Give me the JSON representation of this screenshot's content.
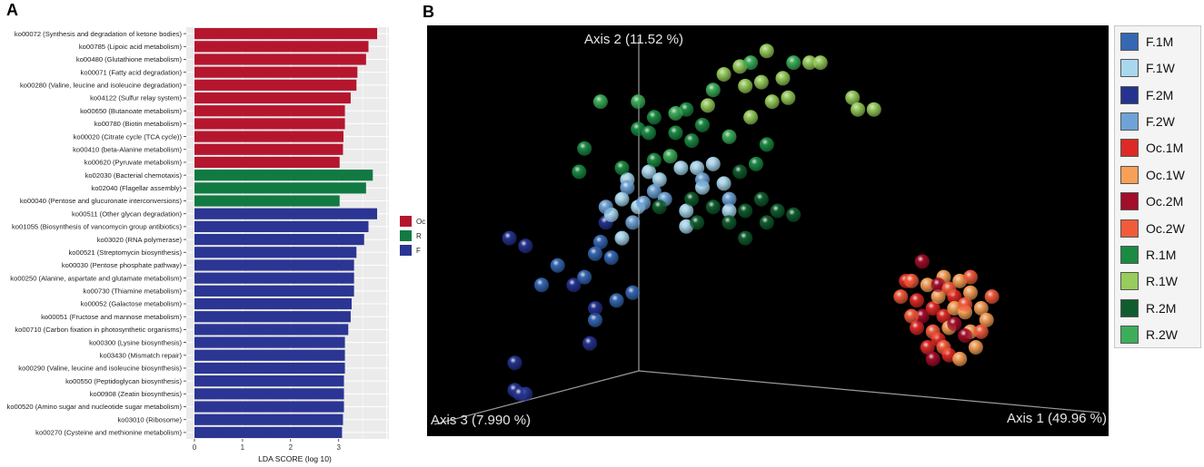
{
  "panel_a_label": "A",
  "panel_b_label": "B",
  "chart_data": [
    {
      "type": "bar",
      "orientation": "horizontal",
      "xlabel": "LDA SCORE (log 10)",
      "xlim": [
        0,
        4
      ],
      "xticks": [
        "0",
        "1",
        "2",
        "3"
      ],
      "legend": {
        "placement": "right",
        "items": [
          {
            "label": "Oc",
            "color": "#b5162e"
          },
          {
            "label": "R",
            "color": "#117a43"
          },
          {
            "label": "F",
            "color": "#2b3593"
          }
        ]
      },
      "grid": true,
      "bars": [
        {
          "label": "ko00072 (Synthesis and degradation of ketone bodies)",
          "value": 3.8,
          "group": "Oc"
        },
        {
          "label": "ko00785 (Lipoic acid metabolism)",
          "value": 3.62,
          "group": "Oc"
        },
        {
          "label": "ko00480 (Glutathione metabolism)",
          "value": 3.57,
          "group": "Oc"
        },
        {
          "label": "ko00071 (Fatty acid degradation)",
          "value": 3.39,
          "group": "Oc"
        },
        {
          "label": "ko00280 (Valine, leucine and isoleucine degradation)",
          "value": 3.37,
          "group": "Oc"
        },
        {
          "label": "ko04122 (Sulfur relay system)",
          "value": 3.25,
          "group": "Oc"
        },
        {
          "label": "ko00650 (Butanoate metabolism)",
          "value": 3.13,
          "group": "Oc"
        },
        {
          "label": "ko00780 (Biotin metabolism)",
          "value": 3.13,
          "group": "Oc"
        },
        {
          "label": "ko00020 (Citrate cycle (TCA cycle))",
          "value": 3.1,
          "group": "Oc"
        },
        {
          "label": "ko00410 (beta-Alanine metabolism)",
          "value": 3.09,
          "group": "Oc"
        },
        {
          "label": "ko00620 (Pyruvate metabolism)",
          "value": 3.02,
          "group": "Oc"
        },
        {
          "label": "ko02030 (Bacterial chemotaxis)",
          "value": 3.71,
          "group": "R"
        },
        {
          "label": "ko02040 (Flagellar assembly)",
          "value": 3.57,
          "group": "R"
        },
        {
          "label": "ko00040 (Pentose and glucuronate interconversions)",
          "value": 3.02,
          "group": "R"
        },
        {
          "label": "ko00511 (Other glycan degradation)",
          "value": 3.8,
          "group": "F"
        },
        {
          "label": "ko01055 (Biosynthesis of vancomycin group antibiotics)",
          "value": 3.62,
          "group": "F"
        },
        {
          "label": "ko03020 (RNA polymerase)",
          "value": 3.53,
          "group": "F"
        },
        {
          "label": "ko00521 (Streptomycin biosynthesis)",
          "value": 3.37,
          "group": "F"
        },
        {
          "label": "ko00030 (Pentose phosphate pathway)",
          "value": 3.32,
          "group": "F"
        },
        {
          "label": "ko00250 (Alanine, aspartate and glutamate metabolism)",
          "value": 3.32,
          "group": "F"
        },
        {
          "label": "ko00730 (Thiamine metabolism)",
          "value": 3.32,
          "group": "F"
        },
        {
          "label": "ko00052 (Galactose metabolism)",
          "value": 3.27,
          "group": "F"
        },
        {
          "label": "ko00051 (Fructose and mannose metabolism)",
          "value": 3.25,
          "group": "F"
        },
        {
          "label": "ko00710 (Carbon fixation in photosynthetic organisms)",
          "value": 3.2,
          "group": "F"
        },
        {
          "label": "ko00300 (Lysine biosynthesis)",
          "value": 3.13,
          "group": "F"
        },
        {
          "label": "ko03430 (Mismatch repair)",
          "value": 3.13,
          "group": "F"
        },
        {
          "label": "ko00290 (Valine, leucine and isoleucine biosynthesis)",
          "value": 3.13,
          "group": "F"
        },
        {
          "label": "ko00550 (Peptidoglycan biosynthesis)",
          "value": 3.11,
          "group": "F"
        },
        {
          "label": "ko00908 (Zeatin biosynthesis)",
          "value": 3.11,
          "group": "F"
        },
        {
          "label": "ko00520 (Amino sugar and nucleotide sugar metabolism)",
          "value": 3.11,
          "group": "F"
        },
        {
          "label": "ko03010 (Ribosome)",
          "value": 3.09,
          "group": "F"
        },
        {
          "label": "ko00270 (Cysteine and methionine metabolism)",
          "value": 3.07,
          "group": "F"
        }
      ]
    },
    {
      "type": "scatter",
      "projection": "3d",
      "axis_labels": [
        "Axis 1 (49.96 %)",
        "Axis 2 (11.52 %)",
        "Axis 3 (7.990 %)"
      ],
      "background": "#000000",
      "legend": {
        "placement": "right",
        "items": [
          {
            "label": "F.1M",
            "color": "#3567b3"
          },
          {
            "label": "F.1W",
            "color": "#a9d8ee"
          },
          {
            "label": "F.2M",
            "color": "#25338f"
          },
          {
            "label": "F.2W",
            "color": "#6ea3d6"
          },
          {
            "label": "Oc.1M",
            "color": "#dd2a26"
          },
          {
            "label": "Oc.1W",
            "color": "#f7a057"
          },
          {
            "label": "Oc.2M",
            "color": "#a20d2a"
          },
          {
            "label": "Oc.2W",
            "color": "#f15b3a"
          },
          {
            "label": "R.1M",
            "color": "#1b8a43"
          },
          {
            "label": "R.1W",
            "color": "#97cd5b"
          },
          {
            "label": "R.2M",
            "color": "#0f5c2e"
          },
          {
            "label": "R.2W",
            "color": "#3cae5a"
          }
        ]
      },
      "series": [
        {
          "name": "F.1M",
          "points": [
            [
              0.2,
              0.36
            ],
            [
              0.23,
              0.41
            ],
            [
              0.3,
              0.44
            ],
            [
              0.31,
              0.47
            ],
            [
              0.33,
              0.43
            ],
            [
              0.34,
              0.32
            ],
            [
              0.3,
              0.27
            ],
            [
              0.28,
              0.38
            ],
            [
              0.37,
              0.34
            ]
          ]
        },
        {
          "name": "F.2M",
          "points": [
            [
              0.14,
              0.48
            ],
            [
              0.17,
              0.46
            ],
            [
              0.32,
              0.52
            ],
            [
              0.15,
              0.16
            ],
            [
              0.15,
              0.09
            ],
            [
              0.17,
              0.08
            ],
            [
              0.16,
              0.08
            ],
            [
              0.3,
              0.3
            ],
            [
              0.26,
              0.36
            ],
            [
              0.29,
              0.21
            ]
          ]
        },
        {
          "name": "F.1W",
          "points": [
            [
              0.33,
              0.54
            ],
            [
              0.35,
              0.58
            ],
            [
              0.36,
              0.63
            ],
            [
              0.4,
              0.65
            ],
            [
              0.42,
              0.63
            ],
            [
              0.46,
              0.66
            ],
            [
              0.49,
              0.66
            ],
            [
              0.52,
              0.67
            ],
            [
              0.54,
              0.62
            ],
            [
              0.5,
              0.61
            ],
            [
              0.47,
              0.55
            ],
            [
              0.38,
              0.56
            ],
            [
              0.55,
              0.55
            ],
            [
              0.47,
              0.51
            ],
            [
              0.35,
              0.48
            ]
          ]
        },
        {
          "name": "F.2W",
          "points": [
            [
              0.39,
              0.57
            ],
            [
              0.43,
              0.58
            ],
            [
              0.5,
              0.63
            ],
            [
              0.55,
              0.58
            ],
            [
              0.41,
              0.6
            ],
            [
              0.36,
              0.61
            ],
            [
              0.32,
              0.56
            ],
            [
              0.37,
              0.52
            ]
          ]
        },
        {
          "name": "R.1M",
          "points": [
            [
              0.28,
              0.71
            ],
            [
              0.38,
              0.76
            ],
            [
              0.41,
              0.79
            ],
            [
              0.45,
              0.75
            ],
            [
              0.48,
              0.73
            ],
            [
              0.41,
              0.68
            ],
            [
              0.47,
              0.81
            ],
            [
              0.5,
              0.77
            ],
            [
              0.35,
              0.66
            ],
            [
              0.62,
              0.72
            ],
            [
              0.6,
              0.67
            ],
            [
              0.27,
              0.65
            ],
            [
              0.4,
              0.75
            ]
          ]
        },
        {
          "name": "R.1W",
          "points": [
            [
              0.51,
              0.82
            ],
            [
              0.54,
              0.9
            ],
            [
              0.57,
              0.92
            ],
            [
              0.58,
              0.87
            ],
            [
              0.61,
              0.88
            ],
            [
              0.62,
              0.96
            ],
            [
              0.65,
              0.89
            ],
            [
              0.59,
              0.79
            ],
            [
              0.66,
              0.84
            ],
            [
              0.7,
              0.93
            ],
            [
              0.72,
              0.93
            ],
            [
              0.78,
              0.84
            ],
            [
              0.79,
              0.81
            ],
            [
              0.82,
              0.81
            ],
            [
              0.63,
              0.83
            ]
          ]
        },
        {
          "name": "R.2M",
          "points": [
            [
              0.42,
              0.56
            ],
            [
              0.48,
              0.58
            ],
            [
              0.52,
              0.56
            ],
            [
              0.55,
              0.52
            ],
            [
              0.58,
              0.55
            ],
            [
              0.62,
              0.52
            ],
            [
              0.64,
              0.55
            ],
            [
              0.61,
              0.58
            ],
            [
              0.58,
              0.48
            ],
            [
              0.49,
              0.52
            ],
            [
              0.57,
              0.65
            ],
            [
              0.67,
              0.54
            ]
          ]
        },
        {
          "name": "R.2W",
          "points": [
            [
              0.38,
              0.83
            ],
            [
              0.45,
              0.8
            ],
            [
              0.52,
              0.86
            ],
            [
              0.59,
              0.93
            ],
            [
              0.67,
              0.93
            ],
            [
              0.55,
              0.74
            ],
            [
              0.31,
              0.83
            ],
            [
              0.44,
              0.69
            ]
          ]
        },
        {
          "name": "Oc.1M",
          "points": [
            [
              0.88,
              0.37
            ],
            [
              0.9,
              0.32
            ],
            [
              0.93,
              0.3
            ],
            [
              0.95,
              0.28
            ],
            [
              0.97,
              0.33
            ],
            [
              0.9,
              0.25
            ],
            [
              0.92,
              0.2
            ],
            [
              0.94,
              0.22
            ],
            [
              0.96,
              0.18
            ]
          ]
        },
        {
          "name": "Oc.1W",
          "points": [
            [
              0.92,
              0.36
            ],
            [
              0.95,
              0.38
            ],
            [
              0.98,
              0.37
            ],
            [
              1.0,
              0.34
            ],
            [
              1.02,
              0.3
            ],
            [
              0.99,
              0.29
            ],
            [
              0.96,
              0.25
            ],
            [
              1.0,
              0.24
            ],
            [
              1.03,
              0.27
            ],
            [
              0.94,
              0.33
            ],
            [
              0.97,
              0.3
            ],
            [
              1.01,
              0.2
            ],
            [
              0.98,
              0.17
            ]
          ]
        },
        {
          "name": "Oc.2M",
          "points": [
            [
              0.91,
              0.42
            ],
            [
              0.94,
              0.36
            ],
            [
              0.97,
              0.26
            ],
            [
              0.99,
              0.23
            ],
            [
              0.93,
              0.17
            ],
            [
              0.91,
              0.28
            ]
          ]
        },
        {
          "name": "Oc.2W",
          "points": [
            [
              0.87,
              0.33
            ],
            [
              0.89,
              0.28
            ],
            [
              0.93,
              0.24
            ],
            [
              0.95,
              0.2
            ],
            [
              0.99,
              0.31
            ],
            [
              1.02,
              0.24
            ],
            [
              1.04,
              0.33
            ],
            [
              1.0,
              0.38
            ],
            [
              0.96,
              0.35
            ],
            [
              0.89,
              0.37
            ]
          ]
        }
      ]
    }
  ]
}
